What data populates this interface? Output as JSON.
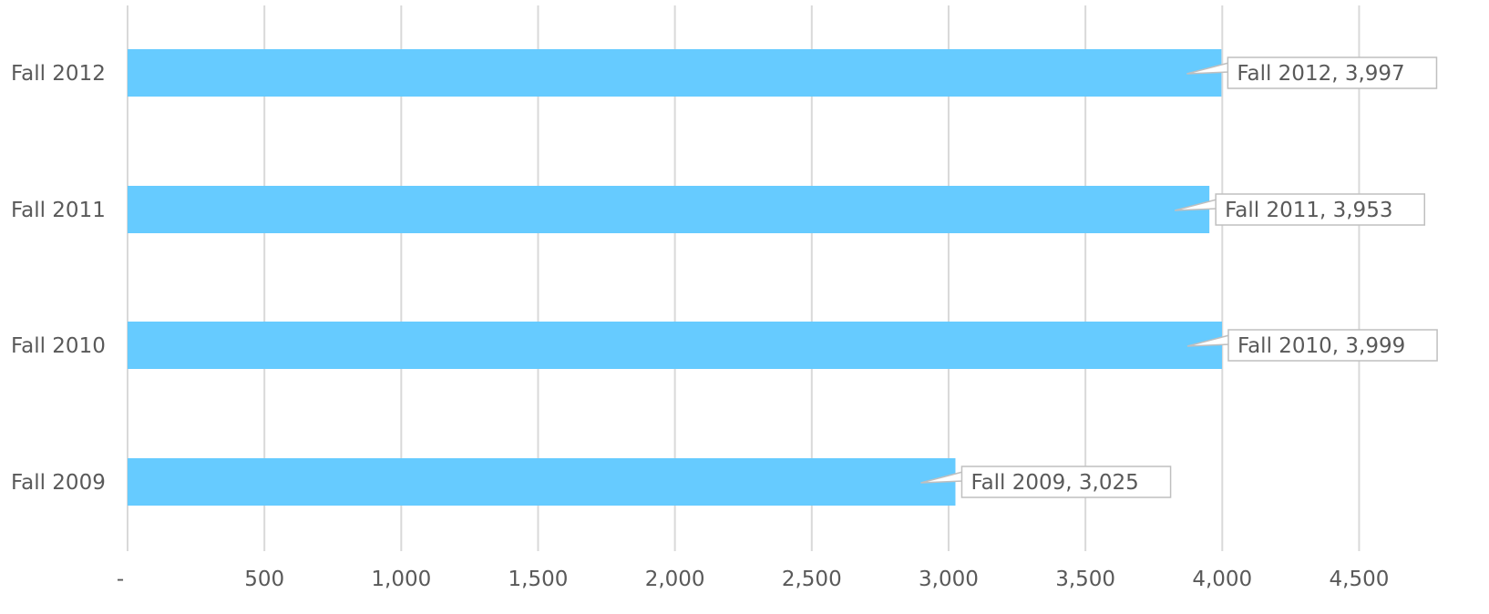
{
  "chart_data": {
    "type": "bar",
    "orientation": "horizontal",
    "categories": [
      "Fall 2012",
      "Fall 2011",
      "Fall 2010",
      "Fall 2009"
    ],
    "values": [
      3997,
      3953,
      3999,
      3025
    ],
    "data_labels": [
      "Fall 2012,  3,997",
      "Fall 2011,  3,953",
      "Fall 2010,  3,999",
      "Fall 2009,  3,025"
    ],
    "xlim": [
      0,
      4700
    ],
    "xticks": [
      0,
      500,
      1000,
      1500,
      2000,
      2500,
      3000,
      3500,
      4000,
      4500
    ],
    "xtick_labels": [
      "-",
      "500",
      "1,000",
      "1,500",
      "2,000",
      "2,500",
      "3,000",
      "3,500",
      "4,000",
      "4,500"
    ],
    "bar_color": "#66cbff",
    "grid": true,
    "legend": "none"
  }
}
